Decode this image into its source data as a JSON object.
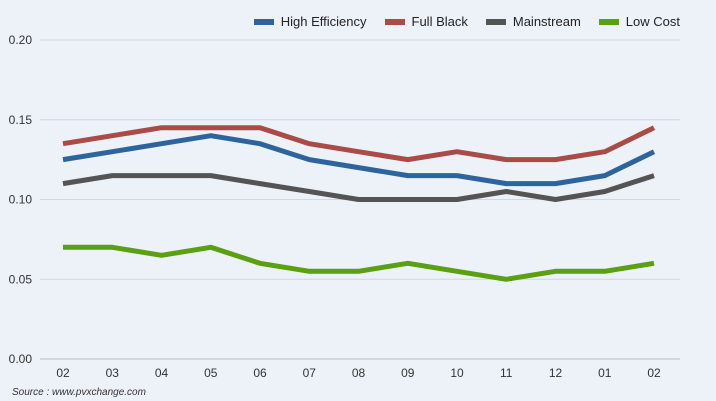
{
  "chart_data": {
    "type": "line",
    "title": "",
    "xlabel": "",
    "ylabel": "",
    "categories": [
      "02",
      "03",
      "04",
      "05",
      "06",
      "07",
      "08",
      "09",
      "10",
      "11",
      "12",
      "01",
      "02"
    ],
    "ylim": [
      0,
      0.2
    ],
    "yticks": [
      "0.00",
      "0.05",
      "0.10",
      "0.15",
      "0.20"
    ],
    "grid": true,
    "legend_position": "top-right",
    "series": [
      {
        "name": "High Efficiency",
        "color": "#2e649e",
        "values": [
          0.125,
          0.13,
          0.135,
          0.14,
          0.135,
          0.125,
          0.12,
          0.115,
          0.115,
          0.11,
          0.11,
          0.115,
          0.13
        ]
      },
      {
        "name": "Full Black",
        "color": "#ab4b48",
        "values": [
          0.135,
          0.14,
          0.145,
          0.145,
          0.145,
          0.135,
          0.13,
          0.125,
          0.13,
          0.125,
          0.125,
          0.13,
          0.145
        ]
      },
      {
        "name": "Mainstream",
        "color": "#545454",
        "values": [
          0.11,
          0.115,
          0.115,
          0.115,
          0.11,
          0.105,
          0.1,
          0.1,
          0.1,
          0.105,
          0.1,
          0.105,
          0.115
        ]
      },
      {
        "name": "Low Cost",
        "color": "#5aa012",
        "values": [
          0.07,
          0.07,
          0.065,
          0.07,
          0.06,
          0.055,
          0.055,
          0.06,
          0.055,
          0.05,
          0.055,
          0.055,
          0.06
        ]
      }
    ],
    "source": "Source : www.pvxchange.com"
  }
}
